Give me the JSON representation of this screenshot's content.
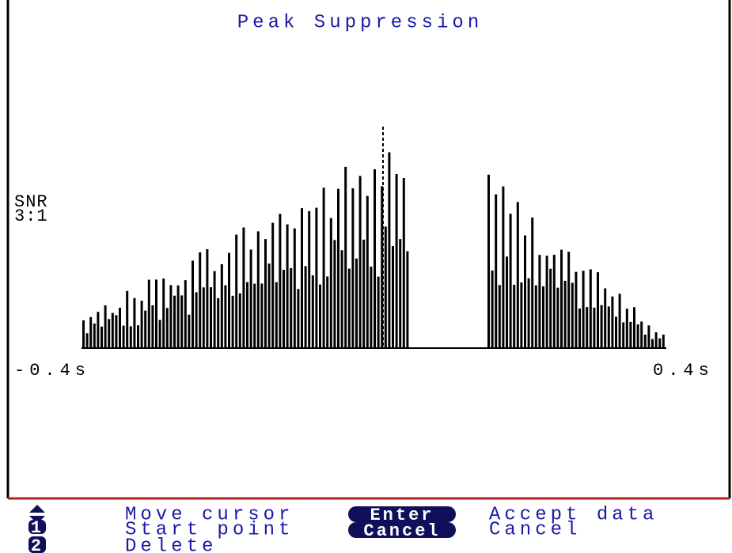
{
  "header": {
    "title": "Peak Suppression"
  },
  "plot": {
    "snr_label": "SNR",
    "snr_value": "3:1",
    "x_start": "-0.4s",
    "x_end": "0.4s"
  },
  "footer": {
    "hints": [
      {
        "icon": null,
        "text": "Move cursor"
      },
      {
        "icon": "1",
        "text": "Start point"
      },
      {
        "icon": "2",
        "text": "Delete"
      }
    ],
    "keys": [
      {
        "key": "Enter",
        "action": "Accept data"
      },
      {
        "key": "Cancel",
        "action": "Cancel"
      }
    ]
  }
}
